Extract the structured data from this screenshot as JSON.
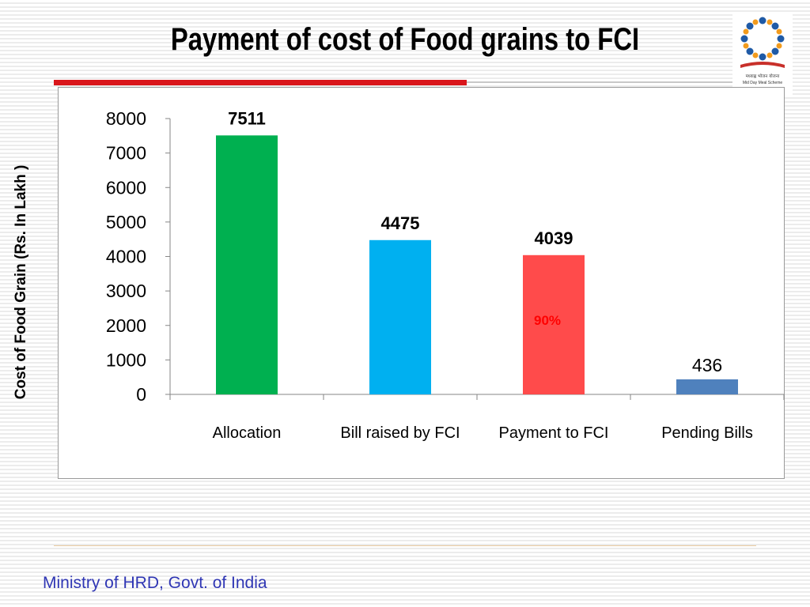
{
  "slide": {
    "title": "Payment of cost of Food grains to FCI",
    "footer": "Ministry of HRD, Govt. of India",
    "logo": {
      "icon": "mid-day-meal-scheme-logo",
      "text_line1": "मध्याह्न भोजन योजना",
      "text_line2": "Mid Day Meal Scheme"
    },
    "accent_color": "#d9161b",
    "footer_color": "#2f36b4"
  },
  "chart_data": {
    "type": "bar",
    "title": "",
    "xlabel": "",
    "ylabel": "Cost of Food Grain (Rs. In Lakh )",
    "ylim": [
      0,
      8000
    ],
    "yticks": [
      "0",
      "1000",
      "2000",
      "3000",
      "4000",
      "5000",
      "6000",
      "7000",
      "8000"
    ],
    "grid": false,
    "categories": [
      "Allocation",
      "Bill raised by FCI",
      "Payment to FCI",
      "Pending Bills"
    ],
    "values": [
      7511,
      4475,
      4039,
      436
    ],
    "value_labels": [
      "7511",
      "4475",
      "4039",
      "436"
    ],
    "colors": [
      "#00b050",
      "#00b0f0",
      "#ff4b4b",
      "#4f81bd"
    ],
    "annotations": [
      {
        "category": "Payment to FCI",
        "text": "90%",
        "color": "#ff0000"
      }
    ]
  }
}
